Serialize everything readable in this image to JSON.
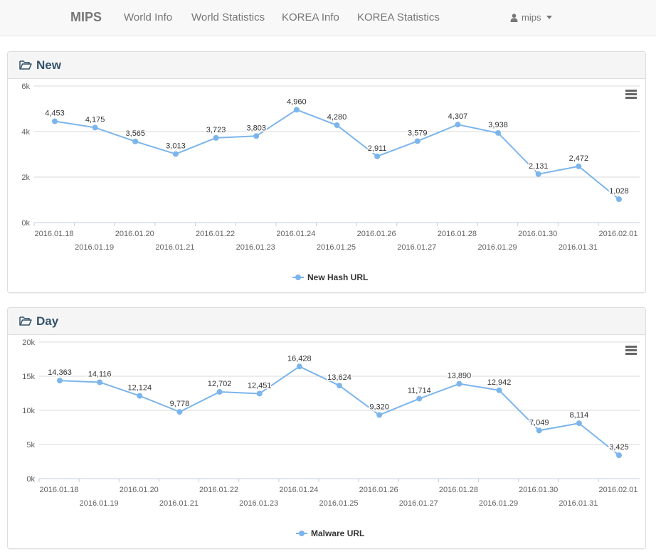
{
  "navbar": {
    "brand": "MIPS",
    "items": [
      {
        "label": "World Info"
      },
      {
        "label": "World Statistics"
      },
      {
        "label": "KOREA Info"
      },
      {
        "label": "KOREA Statistics"
      }
    ],
    "user": {
      "name": "mips",
      "icon": "user-icon"
    }
  },
  "panels": [
    {
      "title": "New",
      "icon": "folder-open-icon"
    },
    {
      "title": "Day",
      "icon": "folder-open-icon"
    }
  ],
  "colors": {
    "series": "#7cb5ec",
    "grid": "#d8d8d8",
    "text": "#606060",
    "title": "#33536b"
  },
  "chart_data": [
    {
      "type": "line",
      "title": "",
      "xlabel": "",
      "ylabel": "",
      "categories": [
        "2016.01.18",
        "2016.01.19",
        "2016.01.20",
        "2016.01.21",
        "2016.01.22",
        "2016.01.23",
        "2016.01.24",
        "2016.01.25",
        "2016.01.26",
        "2016.01.27",
        "2016.01.28",
        "2016.01.29",
        "2016.01.30",
        "2016.01.31",
        "2016.02.01"
      ],
      "series": [
        {
          "name": "New Hash URL",
          "values": [
            4453,
            4175,
            3565,
            3013,
            3723,
            3803,
            4960,
            4280,
            2911,
            3579,
            4307,
            3938,
            2131,
            2472,
            1028
          ]
        }
      ],
      "data_labels": [
        "4,453",
        "4,175",
        "3,565",
        "3,013",
        "3,723",
        "3,803",
        "4,960",
        "4,280",
        "2,911",
        "3,579",
        "4,307",
        "3,938",
        "2,131",
        "2,472",
        "1,028"
      ],
      "ylim": [
        0,
        6000
      ],
      "yticks": [
        0,
        2000,
        4000,
        6000
      ],
      "ytick_labels": [
        "0k",
        "2k",
        "4k",
        "6k"
      ],
      "grid": true,
      "legend": "bottom-center"
    },
    {
      "type": "line",
      "title": "",
      "xlabel": "",
      "ylabel": "",
      "categories": [
        "2016.01.18",
        "2016.01.19",
        "2016.01.20",
        "2016.01.21",
        "2016.01.22",
        "2016.01.23",
        "2016.01.24",
        "2016.01.25",
        "2016.01.26",
        "2016.01.27",
        "2016.01.28",
        "2016.01.29",
        "2016.01.30",
        "2016.01.31",
        "2016.02.01"
      ],
      "series": [
        {
          "name": "Malware URL",
          "values": [
            14363,
            14116,
            12124,
            9778,
            12702,
            12451,
            16428,
            13624,
            9320,
            11714,
            13890,
            12942,
            7049,
            8114,
            3425
          ]
        }
      ],
      "data_labels": [
        "14,363",
        "14,116",
        "12,124",
        "9,778",
        "12,702",
        "12,451",
        "16,428",
        "13,624",
        "9,320",
        "11,714",
        "13,890",
        "12,942",
        "7,049",
        "8,114",
        "3,425"
      ],
      "ylim": [
        0,
        20000
      ],
      "yticks": [
        0,
        5000,
        10000,
        15000,
        20000
      ],
      "ytick_labels": [
        "0k",
        "5k",
        "10k",
        "15k",
        "20k"
      ],
      "grid": true,
      "legend": "bottom-center"
    }
  ]
}
